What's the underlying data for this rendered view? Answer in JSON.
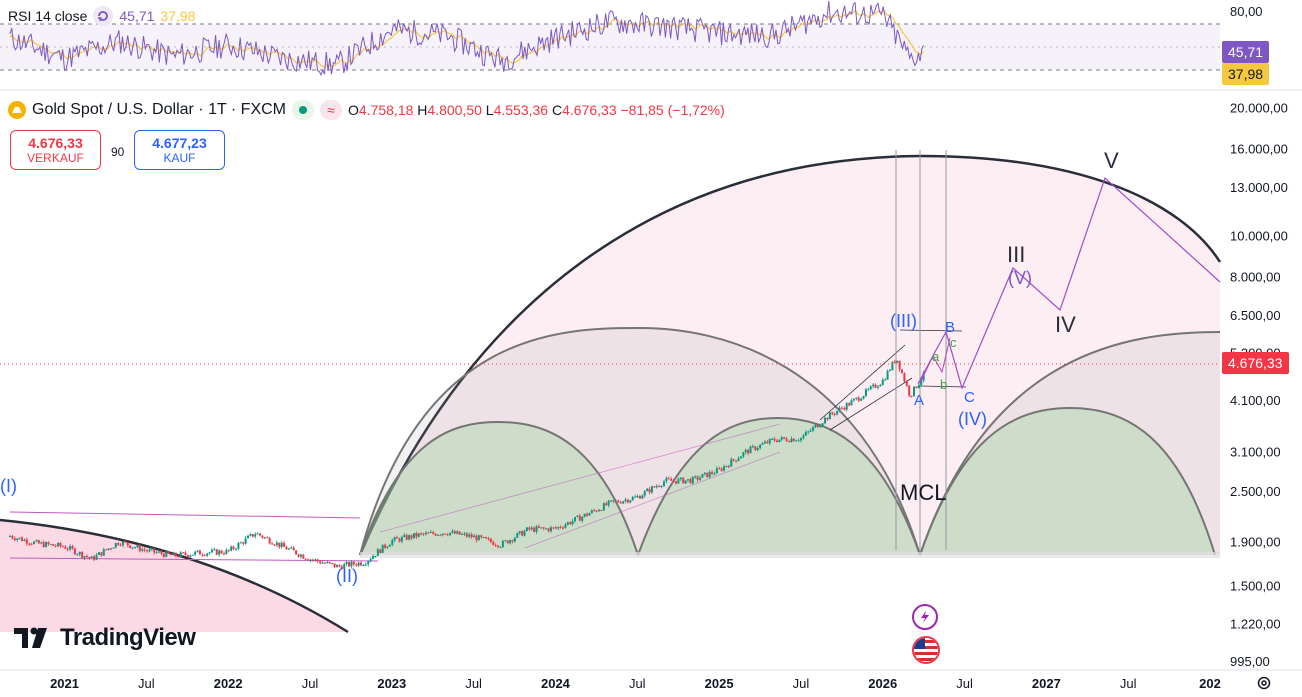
{
  "rsi_legend": {
    "label": "RSI 14 close",
    "value1": "45,71",
    "value2": "37,98",
    "colors": {
      "rsi": "#7e57c2",
      "ma": "#f5c842"
    }
  },
  "main_legend": {
    "symbol": "Gold Spot / U.S. Dollar · 1T · FXCM",
    "o_label": "O",
    "o_value": "4.758,18",
    "h_label": "H",
    "h_value": "4.800,50",
    "l_label": "L",
    "l_value": "4.553,36",
    "c_label": "C",
    "c_value": "4.676,33",
    "change": "−81,85 (−1,72%)"
  },
  "trade": {
    "sell_price": "4.676,33",
    "sell_label": "VERKAUF",
    "spread": "90",
    "buy_price": "4.677,23",
    "buy_label": "KAUF"
  },
  "rsi_axis": {
    "ticks": [
      "80,00"
    ],
    "value_tag": "45,71",
    "ma_tag": "37,98"
  },
  "price_axis": {
    "ticks": [
      "20.000,00",
      "16.000,00",
      "13.000,00",
      "10.000,00",
      "8.000,00",
      "6.500,00",
      "5.300,00",
      "4.100,00",
      "3.100,00",
      "2.500,00",
      "1.900,00",
      "1.500,00",
      "1.220,00",
      "995,00"
    ],
    "last_price_tag": "4.676,33"
  },
  "time_axis": {
    "ticks": [
      "2021",
      "Jul",
      "2022",
      "Jul",
      "2023",
      "Jul",
      "2024",
      "Jul",
      "2025",
      "Jul",
      "2026",
      "Jul",
      "2027",
      "Jul",
      "202"
    ]
  },
  "annotations": {
    "wave_I": "(I)",
    "wave_II": "(II)",
    "wave_III": "(III)",
    "wave_IV": "(IV)",
    "wave_V": "(V)",
    "A": "A",
    "B": "B",
    "C": "C",
    "a": "a",
    "b": "b",
    "c": "c",
    "III": "III",
    "IV": "IV",
    "V": "V",
    "mcl": "MCL"
  },
  "logo": {
    "name": "TradingView"
  },
  "icons": [
    "indicator-icon",
    "wave-icon",
    "flash-icon",
    "us-flag-icon",
    "settings-icon"
  ],
  "chart_data": {
    "type": "line",
    "title": "Gold Spot / U.S. Dollar · 1T · FXCM",
    "price_scale": "log",
    "x_range": [
      "2020-09",
      "2028-01"
    ],
    "y_range": [
      850,
      22000
    ],
    "series": [
      {
        "name": "Gold Spot / U.S. Dollar",
        "points": [
          [
            "2020-09",
            1960
          ],
          [
            "2020-11",
            1880
          ],
          [
            "2021-01",
            1850
          ],
          [
            "2021-03",
            1730
          ],
          [
            "2021-05",
            1900
          ],
          [
            "2021-07",
            1810
          ],
          [
            "2021-09",
            1760
          ],
          [
            "2021-11",
            1790
          ],
          [
            "2022-01",
            1800
          ],
          [
            "2022-03",
            1990
          ],
          [
            "2022-05",
            1850
          ],
          [
            "2022-07",
            1730
          ],
          [
            "2022-09",
            1660
          ],
          [
            "2022-11",
            1700
          ],
          [
            "2023-01",
            1910
          ],
          [
            "2023-03",
            1970
          ],
          [
            "2023-05",
            2000
          ],
          [
            "2023-07",
            1950
          ],
          [
            "2023-09",
            1870
          ],
          [
            "2023-11",
            2030
          ],
          [
            "2024-01",
            2040
          ],
          [
            "2024-03",
            2180
          ],
          [
            "2024-05",
            2340
          ],
          [
            "2024-07",
            2420
          ],
          [
            "2024-09",
            2640
          ],
          [
            "2024-11",
            2650
          ],
          [
            "2025-01",
            2800
          ],
          [
            "2025-03",
            3100
          ],
          [
            "2025-05",
            3300
          ],
          [
            "2025-07",
            3330
          ],
          [
            "2025-09",
            3750
          ],
          [
            "2025-11",
            4100
          ],
          [
            "2026-01",
            4550
          ],
          [
            "2026-02",
            5150
          ],
          [
            "2026-03",
            4200
          ],
          [
            "2026-04",
            4676
          ]
        ]
      },
      {
        "name": "RSI 14 close",
        "points": [
          [
            "2020-09",
            58
          ],
          [
            "2021-01",
            40
          ],
          [
            "2021-05",
            55
          ],
          [
            "2021-09",
            42
          ],
          [
            "2022-01",
            52
          ],
          [
            "2022-05",
            40
          ],
          [
            "2022-09",
            34
          ],
          [
            "2023-01",
            65
          ],
          [
            "2023-05",
            60
          ],
          [
            "2023-09",
            38
          ],
          [
            "2024-01",
            58
          ],
          [
            "2024-05",
            72
          ],
          [
            "2024-09",
            68
          ],
          [
            "2025-01",
            62
          ],
          [
            "2025-05",
            60
          ],
          [
            "2025-09",
            80
          ],
          [
            "2026-01",
            78
          ],
          [
            "2026-03",
            40
          ],
          [
            "2026-04",
            45.71
          ]
        ]
      }
    ],
    "projection": [
      [
        "2026-04",
        4676
      ],
      [
        "2026-05",
        5400
      ],
      [
        "2026-06",
        4100
      ],
      [
        "2026-10",
        7600
      ],
      [
        "2027-01",
        6000
      ],
      [
        "2027-05",
        13000
      ],
      [
        "2028-01",
        7000
      ]
    ]
  }
}
